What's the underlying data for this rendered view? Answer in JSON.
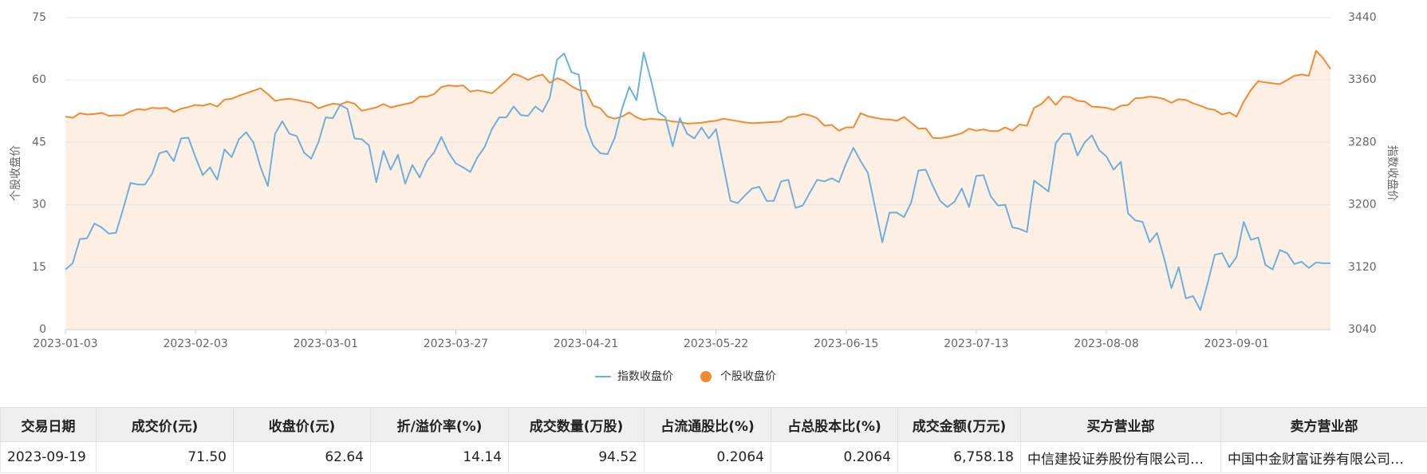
{
  "chart_data": {
    "type": "line",
    "ylabel": "个股收盘价",
    "y2label": "指数收盘价",
    "categories": [
      "2023-01-03",
      null,
      null,
      null,
      null,
      null,
      null,
      null,
      null,
      null,
      null,
      null,
      null,
      null,
      null,
      null,
      null,
      null,
      "2023-02-03",
      null,
      null,
      null,
      null,
      null,
      null,
      null,
      null,
      null,
      null,
      null,
      null,
      null,
      null,
      null,
      null,
      null,
      "2023-03-01",
      null,
      null,
      null,
      null,
      null,
      null,
      null,
      null,
      null,
      null,
      null,
      null,
      null,
      null,
      null,
      null,
      null,
      "2023-03-27",
      null,
      null,
      null,
      null,
      null,
      null,
      null,
      null,
      null,
      null,
      null,
      null,
      null,
      null,
      null,
      null,
      null,
      "2023-04-21",
      null,
      null,
      null,
      null,
      null,
      null,
      null,
      null,
      null,
      null,
      null,
      null,
      null,
      null,
      null,
      null,
      null,
      "2023-05-22",
      null,
      null,
      null,
      null,
      null,
      null,
      null,
      null,
      null,
      null,
      null,
      null,
      null,
      null,
      null,
      null,
      null,
      "2023-06-15",
      null,
      null,
      null,
      null,
      null,
      null,
      null,
      null,
      null,
      null,
      null,
      null,
      null,
      null,
      null,
      null,
      null,
      "2023-07-13",
      null,
      null,
      null,
      null,
      null,
      null,
      null,
      null,
      null,
      null,
      null,
      null,
      null,
      null,
      null,
      null,
      null,
      "2023-08-08",
      null,
      null,
      null,
      null,
      null,
      null,
      null,
      null,
      null,
      null,
      null,
      null,
      null,
      null,
      null,
      null,
      null,
      "2023-09-01",
      null,
      null,
      null,
      null,
      null,
      null,
      null,
      null,
      null,
      null,
      null,
      null,
      null
    ],
    "series": [
      {
        "name": "指数收盘价",
        "color": "#6cb0dc",
        "axis": "y2",
        "marker": "line",
        "values": [
          3117,
          3125,
          3156,
          3157,
          3176,
          3171,
          3163,
          3164,
          3195,
          3228,
          3226,
          3226,
          3240,
          3266,
          3269,
          3256,
          3285,
          3286,
          3261,
          3238,
          3248,
          3232,
          3271,
          3261,
          3284,
          3293,
          3280,
          3248,
          3224,
          3291,
          3307,
          3291,
          3288,
          3267,
          3259,
          3280,
          3312,
          3311,
          3328,
          3323,
          3285,
          3284,
          3276,
          3229,
          3269,
          3245,
          3264,
          3227,
          3251,
          3235,
          3256,
          3267,
          3287,
          3267,
          3253,
          3248,
          3242,
          3261,
          3274,
          3297,
          3312,
          3312,
          3326,
          3315,
          3314,
          3326,
          3319,
          3337,
          3386,
          3394,
          3370,
          3367,
          3301,
          3276,
          3266,
          3265,
          3286,
          3323,
          3351,
          3334,
          3395,
          3360,
          3319,
          3312,
          3275,
          3311,
          3291,
          3285,
          3299,
          3285,
          3297,
          3251,
          3205,
          3202,
          3212,
          3221,
          3223,
          3205,
          3205,
          3230,
          3232,
          3196,
          3199,
          3216,
          3232,
          3230,
          3234,
          3229,
          3253,
          3273,
          3256,
          3241,
          3197,
          3152,
          3190,
          3190,
          3184,
          3203,
          3244,
          3245,
          3224,
          3205,
          3197,
          3204,
          3221,
          3197,
          3237,
          3238,
          3211,
          3199,
          3200,
          3171,
          3169,
          3165,
          3231,
          3224,
          3217,
          3279,
          3291,
          3291,
          3263,
          3280,
          3289,
          3270,
          3262,
          3245,
          3255,
          3189,
          3180,
          3178,
          3152,
          3164,
          3131,
          3093,
          3120,
          3080,
          3083,
          3065,
          3099,
          3136,
          3138,
          3120,
          3133,
          3178,
          3155,
          3158,
          3123,
          3117,
          3142,
          3138,
          3124,
          3127,
          3119,
          3126,
          3125,
          3125
        ]
      },
      {
        "name": "个股收盘价",
        "color": "#f28a30",
        "area": "#fdefe4",
        "marker": "circle",
        "values": [
          51.2,
          50.9,
          52,
          51.7,
          51.8,
          52.1,
          51.4,
          51.5,
          51.5,
          52.4,
          53,
          52.8,
          53.3,
          53.2,
          53.3,
          52.3,
          53.1,
          53.5,
          54,
          53.8,
          54.3,
          53.6,
          55.3,
          55.5,
          56.2,
          56.8,
          57.4,
          58,
          56.6,
          55,
          55.3,
          55.5,
          55.2,
          54.8,
          54.5,
          53.2,
          53.8,
          54.3,
          54.1,
          54.8,
          54.3,
          52.6,
          53,
          53.4,
          54.2,
          53.4,
          53.8,
          54.2,
          54.6,
          56,
          56,
          56.6,
          58.3,
          58.7,
          58.5,
          58.7,
          57.2,
          57.5,
          57.2,
          56.8,
          58.3,
          59.8,
          61.5,
          60.9,
          60,
          60.8,
          61.3,
          59.3,
          60.4,
          59.8,
          58.5,
          57.6,
          57.4,
          53.8,
          53.2,
          51.2,
          50.7,
          51.2,
          52.2,
          51,
          50.4,
          50.7,
          50.5,
          50.4,
          50,
          49.9,
          49.5,
          49.6,
          49.7,
          50,
          50.2,
          50.7,
          50.4,
          50.1,
          49.8,
          49.6,
          49.7,
          49.8,
          49.9,
          50,
          51.1,
          51.2,
          51.8,
          51.5,
          50.8,
          49,
          49.2,
          47.8,
          48.6,
          48.6,
          52,
          51.3,
          50.9,
          50.6,
          50.5,
          50.2,
          51.1,
          49.7,
          48.3,
          48.4,
          46.1,
          46,
          46.3,
          46.7,
          47.2,
          48.3,
          47.8,
          48.1,
          47.7,
          47.7,
          48.6,
          47.8,
          49.3,
          49,
          53.3,
          54.2,
          56,
          54,
          56,
          55.9,
          55,
          54.8,
          53.6,
          53.5,
          53.3,
          52.8,
          53.8,
          54,
          55.6,
          55.7,
          56,
          55.8,
          55.4,
          54.5,
          55.4,
          55.2,
          54.4,
          53.8,
          53.1,
          52.8,
          51.7,
          52.2,
          51.2,
          54.8,
          57.6,
          59.7,
          59.4,
          59.2,
          59,
          60,
          61,
          61.3,
          61,
          67,
          65.2,
          62.64
        ]
      }
    ],
    "ylim": [
      0,
      75
    ],
    "yticks": [
      0,
      15,
      30,
      45,
      60,
      75
    ],
    "y2lim": [
      3040,
      3440
    ],
    "y2ticks": [
      3040,
      3120,
      3200,
      3280,
      3360,
      3440
    ],
    "grid": true,
    "legend": "bottom"
  },
  "table": {
    "columns": [
      "交易日期",
      "成交价(元)",
      "收盘价(元)",
      "折/溢价率(%)",
      "成交数量(万股)",
      "占流通股比(%)",
      "占总股本比(%)",
      "成交金额(万元)",
      "买方营业部",
      "卖方营业部"
    ],
    "rows": [
      [
        "2023-09-19",
        "71.50",
        "62.64",
        "14.14",
        "94.52",
        "0.2064",
        "0.2064",
        "6,758.18",
        "中信建投证券股份有限公司…",
        "中国中金财富证券有限公司…"
      ]
    ]
  }
}
